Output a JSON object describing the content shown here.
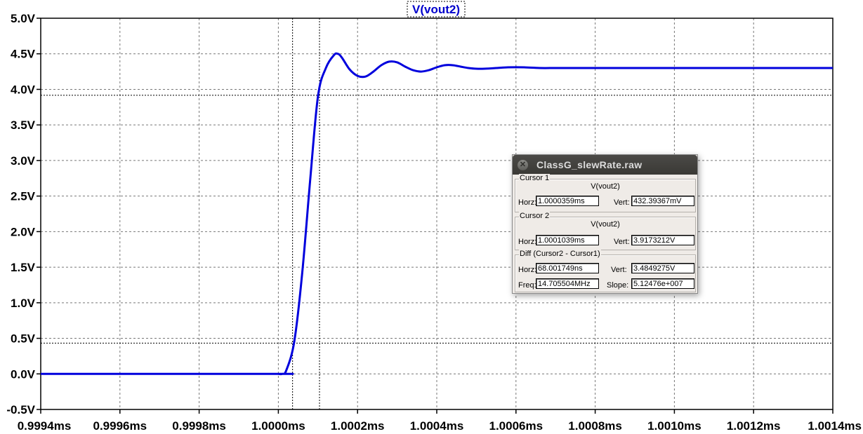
{
  "plot": {
    "trace_title": "V(vout2)",
    "trace_color": "#0000dd",
    "grid": true
  },
  "chart_data": {
    "type": "line",
    "title": "V(vout2)",
    "xlim": [
      0.9994,
      1.0014
    ],
    "ylim": [
      -0.5,
      5.0
    ],
    "x_ticks": [
      "0.9994ms",
      "0.9996ms",
      "0.9998ms",
      "1.0000ms",
      "1.0002ms",
      "1.0004ms",
      "1.0006ms",
      "1.0008ms",
      "1.0010ms",
      "1.0012ms",
      "1.0014ms"
    ],
    "y_ticks": [
      "5.0V",
      "4.5V",
      "4.0V",
      "3.5V",
      "3.0V",
      "2.5V",
      "2.0V",
      "1.5V",
      "1.0V",
      "0.5V",
      "0.0V",
      "-0.5V"
    ],
    "cursor_x": [
      1.0000359,
      1.0001039
    ],
    "cursor_y": [
      0.43239367,
      3.9173212
    ],
    "series": [
      {
        "name": "V(vout2)",
        "x": [
          0.9994,
          0.99999,
          1.0,
          1.00001,
          1.00002,
          1.00004,
          1.00006,
          1.00008,
          1.0001,
          1.00012,
          1.00014,
          1.00015,
          1.00016,
          1.00018,
          1.0002,
          1.00022,
          1.00024,
          1.00026,
          1.00028,
          1.0003,
          1.00032,
          1.00034,
          1.00036,
          1.00038,
          1.0004,
          1.00042,
          1.00044,
          1.00046,
          1.00048,
          1.0005,
          1.00052,
          1.00055,
          1.00058,
          1.00062,
          1.00066,
          1.0007,
          1.00075,
          1.0008,
          1.0009,
          1.001,
          1.0011,
          1.0012,
          1.0013,
          1.0014
        ],
        "y": [
          0.0,
          0.0,
          0.0,
          0.0,
          0.05,
          0.45,
          1.4,
          2.7,
          3.9,
          4.3,
          4.48,
          4.5,
          4.45,
          4.28,
          4.19,
          4.18,
          4.25,
          4.34,
          4.39,
          4.38,
          4.32,
          4.27,
          4.25,
          4.27,
          4.31,
          4.34,
          4.34,
          4.32,
          4.3,
          4.29,
          4.29,
          4.3,
          4.31,
          4.31,
          4.3,
          4.3,
          4.3,
          4.3,
          4.3,
          4.3,
          4.3,
          4.3,
          4.3,
          4.3
        ]
      }
    ]
  },
  "dialog": {
    "title": "ClassG_slewRate.raw",
    "cursor1": {
      "label": "Cursor 1",
      "trace": "V(vout2)",
      "horz_label": "Horz:",
      "horz_value": "1.0000359ms",
      "vert_label": "Vert:",
      "vert_value": "432.39367mV"
    },
    "cursor2": {
      "label": "Cursor 2",
      "trace": "V(vout2)",
      "horz_label": "Horz:",
      "horz_value": "1.0001039ms",
      "vert_label": "Vert:",
      "vert_value": "3.9173212V"
    },
    "diff": {
      "label": "Diff (Cursor2 - Cursor1)",
      "horz_label": "Horz:",
      "horz_value": "68.001749ns",
      "vert_label": "Vert:",
      "vert_value": "3.4849275V",
      "freq_label": "Freq:",
      "freq_value": "14.705504MHz",
      "slope_label": "Slope:",
      "slope_value": "5.12476e+007"
    }
  }
}
